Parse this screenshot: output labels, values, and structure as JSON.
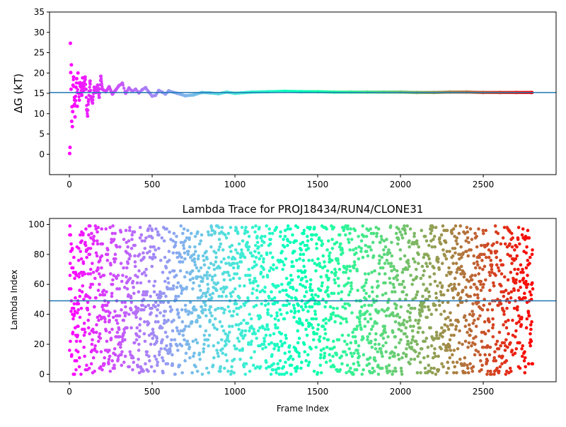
{
  "chart_data": [
    {
      "type": "scatter",
      "title": "",
      "xlabel": "",
      "ylabel": "ΔG (kT)",
      "xlim": [
        -120,
        2940
      ],
      "ylim": [
        -5,
        35
      ],
      "xticks": [
        0,
        500,
        1000,
        1500,
        2000,
        2500
      ],
      "yticks": [
        0,
        5,
        10,
        15,
        20,
        25,
        30,
        35
      ],
      "colormap": "rainbow",
      "hline": 15.2,
      "hline_color": "#1f77b4",
      "grid": false,
      "n_frames": 2800,
      "series": [
        {
          "x": [
            2,
            4,
            6,
            8,
            10,
            12,
            14,
            16,
            18,
            20,
            22,
            25,
            28,
            31,
            34,
            37,
            40,
            44,
            48,
            52,
            56,
            60,
            65,
            70,
            75,
            80,
            85,
            90,
            95,
            100,
            105,
            110,
            115,
            120,
            125,
            130,
            140,
            150,
            160,
            170,
            180,
            190,
            200,
            220,
            240,
            260,
            280,
            300,
            320,
            340,
            360,
            380,
            400,
            420,
            440,
            460,
            480,
            500,
            520,
            540,
            560,
            580,
            600,
            650,
            700,
            750,
            800,
            850,
            900,
            950,
            1000,
            1100,
            1200,
            1300,
            1400,
            1500,
            1600,
            1700,
            1800,
            1900,
            2000,
            2100,
            2200,
            2300,
            2400,
            2500,
            2600,
            2700,
            2790
          ],
          "y": [
            0.2,
            1.7,
            27.3,
            20.1,
            16.0,
            22.0,
            8.1,
            11.7,
            6.8,
            10.5,
            17.0,
            19.0,
            12.0,
            14.0,
            9.2,
            13.2,
            16.5,
            18.6,
            11.8,
            20.0,
            15.0,
            13.3,
            17.6,
            16.5,
            14.5,
            18.8,
            15.6,
            17.4,
            19.0,
            16.0,
            11.0,
            9.4,
            13.0,
            15.5,
            18.0,
            14.2,
            12.6,
            16.5,
            15.2,
            17.0,
            14.0,
            19.2,
            16.0,
            15.4,
            16.6,
            14.8,
            15.8,
            16.9,
            17.5,
            15.0,
            16.3,
            15.5,
            16.0,
            15.1,
            15.9,
            16.4,
            15.3,
            14.3,
            14.5,
            15.7,
            15.3,
            14.8,
            15.6,
            15.0,
            14.4,
            14.6,
            15.2,
            15.1,
            14.9,
            15.3,
            15.0,
            15.3,
            15.4,
            15.5,
            15.4,
            15.4,
            15.3,
            15.3,
            15.3,
            15.3,
            15.3,
            15.2,
            15.2,
            15.3,
            15.3,
            15.2,
            15.2,
            15.2,
            15.2
          ]
        }
      ]
    },
    {
      "type": "scatter",
      "title": "Lambda Trace for PROJ18434/RUN4/CLONE31",
      "xlabel": "Frame Index",
      "ylabel": "Lambda Index",
      "xlim": [
        -120,
        2940
      ],
      "ylim": [
        -5,
        104
      ],
      "xticks": [
        0,
        500,
        1000,
        1500,
        2000,
        2500
      ],
      "yticks": [
        0,
        20,
        40,
        60,
        80,
        100
      ],
      "colormap": "rainbow",
      "hline": 49,
      "hline_color": "#1f77b4",
      "grid": false,
      "n_frames": 2800,
      "n_lambda": 100
    }
  ]
}
